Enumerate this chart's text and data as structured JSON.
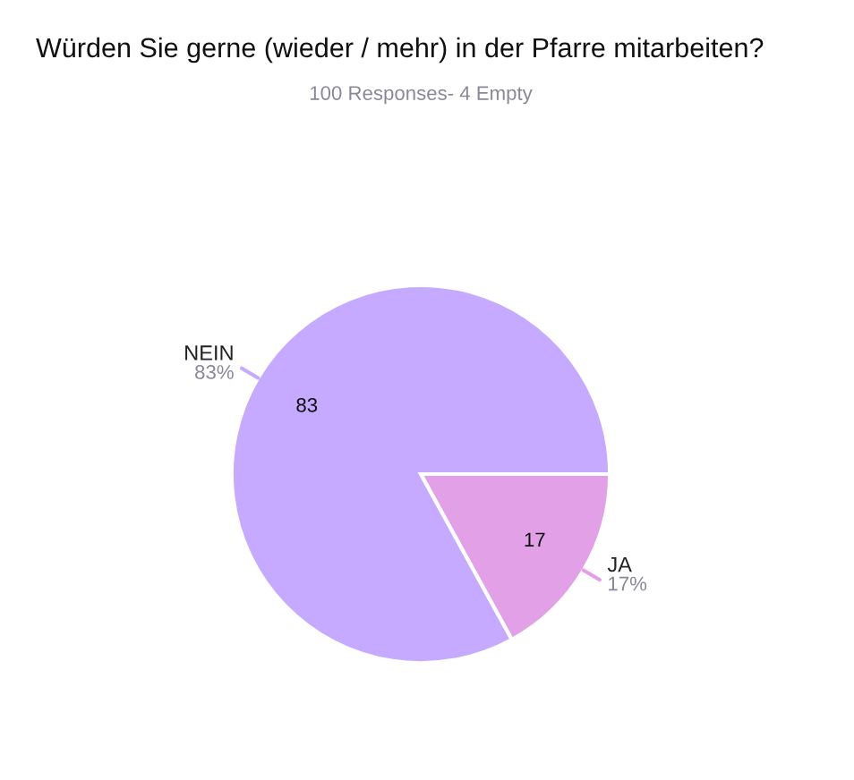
{
  "chart_data": {
    "type": "pie",
    "title": "Würden Sie gerne (wieder / mehr) in der Pfarre mitarbeiten?",
    "subtitle": "100 Responses- 4 Empty",
    "categories": [
      "JA",
      "NEIN"
    ],
    "values": [
      17,
      83
    ],
    "colors": [
      "#e2a0e6",
      "#c6aaff"
    ],
    "value_labels": [
      "17",
      "83"
    ],
    "annotations": [
      {
        "text": "17%",
        "x": "JA"
      },
      {
        "text": "83%",
        "x": "NEIN"
      }
    ],
    "legend": false
  }
}
